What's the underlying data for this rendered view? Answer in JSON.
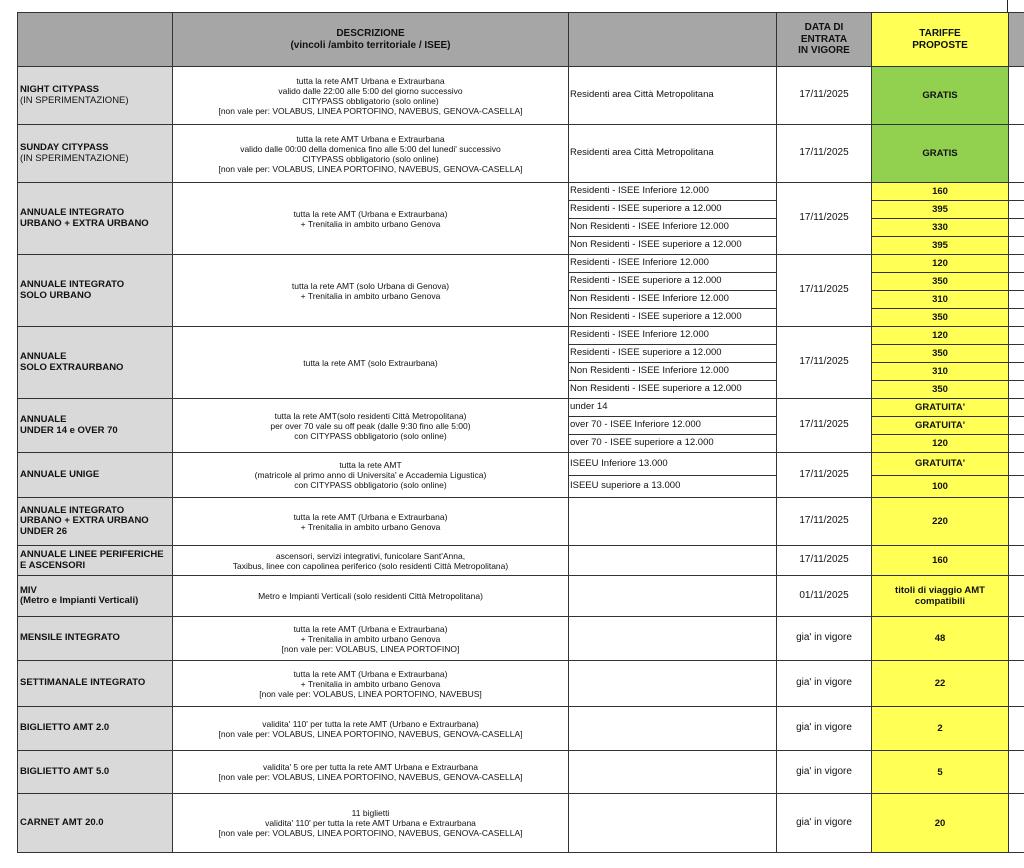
{
  "header": {
    "col_name": "",
    "col_desc": [
      "DESCRIZIONE",
      "(vincoli /ambito territoriale / ISEE)"
    ],
    "col_sub": "",
    "col_date": [
      "DATA DI",
      "ENTRATA",
      "IN VIGORE"
    ],
    "col_price": [
      "TARIFFE",
      "PROPOSTE"
    ]
  },
  "colors": {
    "header_bg": "#a6a6a6",
    "name_bg": "#d9d9d9",
    "price_bg": "#ffff55",
    "free_bg": "#92d050"
  },
  "rows": [
    {
      "name": [
        "NIGHT CITYPASS",
        "(IN SPERIMENTAZIONE)"
      ],
      "name_light": [
        1
      ],
      "desc": [
        "tutta la rete AMT Urbana e Extraurbana",
        "valido dalle 22:00 alle 5:00 del giorno successivo",
        "CITYPASS obbligatorio (solo online)",
        "[non vale per: VOLABUS, LINEA PORTOFINO, NAVEBUS, GENOVA-CASELLA]"
      ],
      "date": "17/11/2025",
      "green": true,
      "subs": [
        {
          "label": "Residenti area Città Metropolitana",
          "price": "GRATIS"
        }
      ]
    },
    {
      "name": [
        "SUNDAY CITYPASS",
        "(IN SPERIMENTAZIONE)"
      ],
      "name_light": [
        1
      ],
      "desc": [
        "tutta la rete AMT Urbana e Extraurbana",
        "valido dalle 00:00 della domenica fino alle 5:00 del lunedi' successivo",
        "CITYPASS obbligatorio (solo online)",
        "[non vale per: VOLABUS, LINEA PORTOFINO, NAVEBUS, GENOVA-CASELLA]"
      ],
      "date": "17/11/2025",
      "green": true,
      "subs": [
        {
          "label": "Residenti area Città Metropolitana",
          "price": "GRATIS"
        }
      ]
    },
    {
      "name": [
        "ANNUALE INTEGRATO",
        "URBANO + EXTRA URBANO"
      ],
      "desc": [
        "tutta la rete AMT (Urbana e Extraurbana)",
        "+ Trenitalia in ambito urbano Genova"
      ],
      "date": "17/11/2025",
      "subs": [
        {
          "label": "Residenti - ISEE Inferiore 12.000",
          "price": "160"
        },
        {
          "label": "Residenti - ISEE superiore a 12.000",
          "price": "395"
        },
        {
          "label": "Non Residenti - ISEE Inferiore 12.000",
          "price": "330"
        },
        {
          "label": "Non Residenti - ISEE superiore a 12.000",
          "price": "395"
        }
      ]
    },
    {
      "name": [
        "ANNUALE INTEGRATO",
        "SOLO URBANO"
      ],
      "desc": [
        "tutta la rete AMT (solo Urbana di Genova)",
        "+ Trenitalia in ambito urbano Genova"
      ],
      "date": "17/11/2025",
      "subs": [
        {
          "label": "Residenti - ISEE Inferiore 12.000",
          "price": "120"
        },
        {
          "label": "Residenti - ISEE superiore a 12.000",
          "price": "350"
        },
        {
          "label": "Non Residenti - ISEE Inferiore 12.000",
          "price": "310"
        },
        {
          "label": "Non Residenti - ISEE superiore a 12.000",
          "price": "350"
        }
      ]
    },
    {
      "name": [
        "ANNUALE",
        "SOLO EXTRAURBANO"
      ],
      "desc": [
        "tutta la rete AMT (solo Extraurbana)"
      ],
      "date": "17/11/2025",
      "subs": [
        {
          "label": "Residenti - ISEE Inferiore 12.000",
          "price": "120"
        },
        {
          "label": "Residenti - ISEE superiore a 12.000",
          "price": "350"
        },
        {
          "label": "Non Residenti - ISEE Inferiore 12.000",
          "price": "310"
        },
        {
          "label": "Non Residenti - ISEE superiore a 12.000",
          "price": "350"
        }
      ]
    },
    {
      "name": [
        "ANNUALE",
        "UNDER 14 e OVER 70"
      ],
      "desc": [
        "tutta la rete AMT(solo residenti Città Metropolitana)",
        "per over 70 vale su off peak (dalle 9:30 fino alle 5:00)",
        "con CITYPASS obbligatorio (solo online)"
      ],
      "date": "17/11/2025",
      "subs": [
        {
          "label": "under 14",
          "price": "GRATUITA'"
        },
        {
          "label": "over 70 - ISEE Inferiore 12.000",
          "price": "GRATUITA'"
        },
        {
          "label": "over 70 - ISEE superiore a 12.000",
          "price": "120"
        }
      ]
    },
    {
      "name": [
        "ANNUALE UNIGE"
      ],
      "desc": [
        "tutta la rete AMT",
        "(matricole al primo anno di Universita' e Accademia Ligustica)",
        "con CITYPASS obbligatorio (solo online)"
      ],
      "date": "17/11/2025",
      "subs": [
        {
          "label": "ISEEU Inferiore 13.000",
          "price": "GRATUITA'"
        },
        {
          "label": "ISEEU superiore a 13.000",
          "price": "100"
        }
      ]
    },
    {
      "name": [
        "ANNUALE INTEGRATO",
        "URBANO + EXTRA URBANO",
        "UNDER 26"
      ],
      "desc": [
        "tutta la rete AMT (Urbana e Extraurbana)",
        "+ Trenitalia in ambito urbano Genova"
      ],
      "date": "17/11/2025",
      "subs": [
        {
          "label": "",
          "price": "220"
        }
      ]
    },
    {
      "name": [
        "ANNUALE LINEE PERIFERICHE",
        "E ASCENSORI"
      ],
      "desc": [
        "ascensori, servizi integrativi,  funicolare Sant'Anna,",
        "Taxibus, linee con capolinea periferico (solo residenti Città Metropolitana)"
      ],
      "date": "17/11/2025",
      "subs": [
        {
          "label": "",
          "price": "160"
        }
      ]
    },
    {
      "name": [
        "MIV",
        "(Metro e Impianti Verticali)"
      ],
      "desc": [
        "Metro e Impianti Verticali (solo residenti Città Metropolitana)"
      ],
      "date": "01/11/2025",
      "subs": [
        {
          "label": "",
          "price": "titoli di viaggio AMT compatibili"
        }
      ]
    },
    {
      "name": [
        "MENSILE INTEGRATO"
      ],
      "desc": [
        "tutta la rete AMT (Urbana e Extraurbana)",
        "+ Trenitalia in ambito urbano Genova",
        "[non vale per: VOLABUS, LINEA PORTOFINO]"
      ],
      "date": "gia' in vigore",
      "subs": [
        {
          "label": "",
          "price": "48"
        }
      ]
    },
    {
      "name": [
        "SETTIMANALE INTEGRATO"
      ],
      "desc": [
        "tutta la rete AMT (Urbana e Extraurbana)",
        "+ Trenitalia in ambito urbano Genova",
        "[non vale per: VOLABUS, LINEA PORTOFINO, NAVEBUS]"
      ],
      "date": "gia' in vigore",
      "subs": [
        {
          "label": "",
          "price": "22"
        }
      ]
    },
    {
      "name": [
        "BIGLIETTO AMT 2.0"
      ],
      "desc": [
        "validita' 110' per tutta la rete AMT (Urbano e Extraurbana)",
        "[non vale per: VOLABUS, LINEA PORTOFINO, NAVEBUS, GENOVA-CASELLA]"
      ],
      "date": "gia' in vigore",
      "subs": [
        {
          "label": "",
          "price": "2"
        }
      ]
    },
    {
      "name": [
        "BIGLIETTO AMT 5.0"
      ],
      "desc": [
        "validita' 5 ore per tutta la rete AMT Urbana e Extraurbana",
        "[non vale per: VOLABUS, LINEA PORTOFINO, NAVEBUS, GENOVA-CASELLA]"
      ],
      "date": "gia' in vigore",
      "subs": [
        {
          "label": "",
          "price": "5"
        }
      ]
    },
    {
      "name": [
        "CARNET AMT 20.0"
      ],
      "desc": [
        "11 biglietti",
        "validita' 110' per tutta la rete AMT Urbana e Extraurbana",
        "[non vale per: VOLABUS, LINEA PORTOFINO, NAVEBUS, GENOVA-CASELLA]"
      ],
      "date": "gia' in vigore",
      "subs": [
        {
          "label": "",
          "price": "20"
        }
      ]
    }
  ]
}
